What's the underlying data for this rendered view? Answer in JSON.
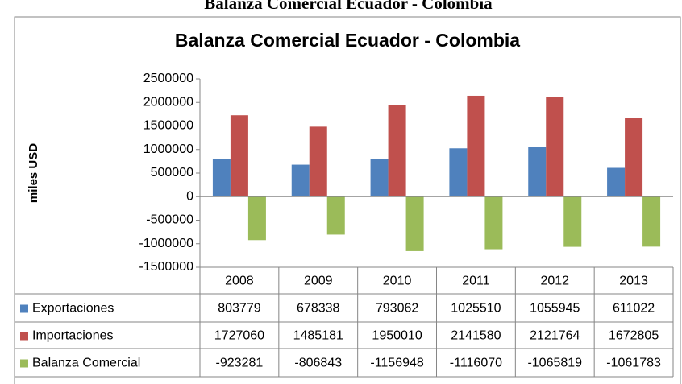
{
  "caption": "Balanza Comercial Ecuador - Colombia",
  "chart_data": {
    "type": "bar",
    "title": "Balanza Comercial Ecuador - Colombia",
    "y_label": "miles USD",
    "categories": [
      "2008",
      "2009",
      "2010",
      "2011",
      "2012",
      "2013"
    ],
    "series": [
      {
        "name": "Exportaciones",
        "color": "#4f81bd",
        "values": [
          803779,
          678338,
          793062,
          1025510,
          1055945,
          611022
        ]
      },
      {
        "name": "Importaciones",
        "color": "#c0504d",
        "values": [
          1727060,
          1485181,
          1950010,
          2141580,
          2121764,
          1672805
        ]
      },
      {
        "name": "Balanza Comercial",
        "color": "#9bbb59",
        "values": [
          -923281,
          -806843,
          -1156948,
          -1116070,
          -1065819,
          -1061783
        ]
      }
    ],
    "ylim": [
      -1500000,
      2500000
    ],
    "yticks": [
      -1500000,
      -1000000,
      -500000,
      0,
      500000,
      1000000,
      1500000,
      2000000,
      2500000
    ],
    "grid": false
  }
}
